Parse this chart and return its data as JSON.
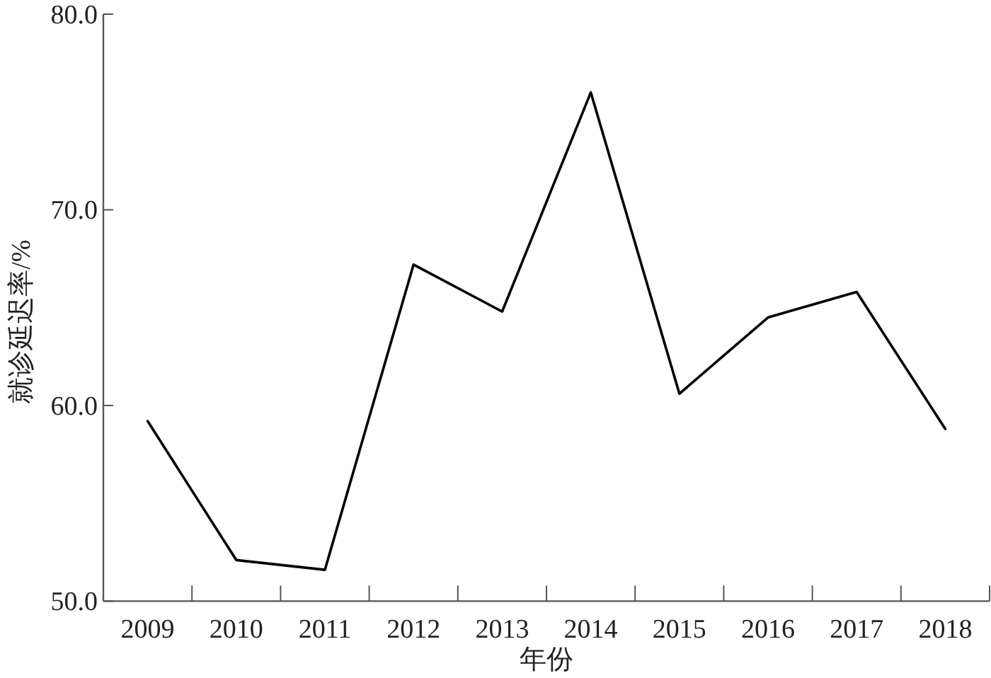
{
  "chart_data": {
    "type": "line",
    "xlabel": "年份",
    "ylabel": "就诊延迟率/%",
    "categories": [
      "2009",
      "2010",
      "2011",
      "2012",
      "2013",
      "2014",
      "2015",
      "2016",
      "2017",
      "2018"
    ],
    "values": [
      59.2,
      52.1,
      51.6,
      67.2,
      64.8,
      76.0,
      60.6,
      64.5,
      65.8,
      58.8
    ],
    "color": "#000000",
    "line_style": "solid",
    "ylim": [
      50,
      80
    ],
    "yticks": [
      {
        "value": 50,
        "label": "50.0"
      },
      {
        "value": 60,
        "label": "60.0"
      },
      {
        "value": 70,
        "label": "70.0"
      },
      {
        "value": 80,
        "label": "80.0"
      }
    ]
  }
}
